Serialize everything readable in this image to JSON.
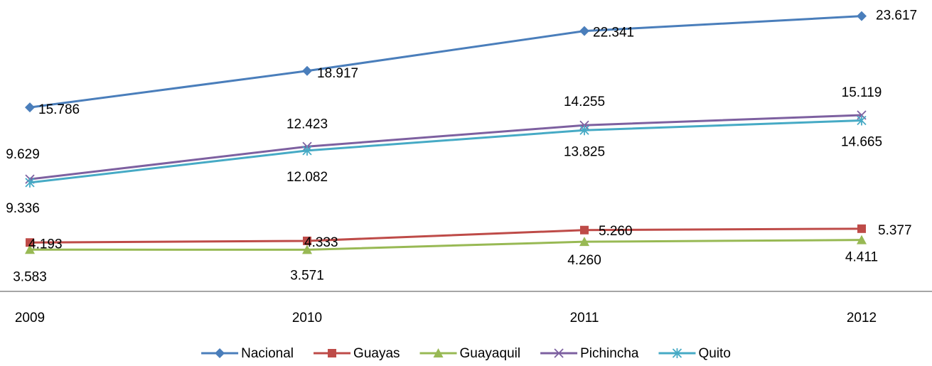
{
  "chart_data": {
    "type": "line",
    "categories": [
      "2009",
      "2010",
      "2011",
      "2012"
    ],
    "ylim": [
      0,
      25000
    ],
    "legend": "bottom",
    "series": [
      {
        "name": "Nacional",
        "color": "#4a7ebb",
        "marker": "diamond",
        "values": [
          15786,
          18917,
          22341,
          23617
        ],
        "value_labels": [
          "15.786",
          "18.917",
          "22.341",
          "23.617"
        ]
      },
      {
        "name": "Guayas",
        "color": "#be4b48",
        "marker": "square",
        "values": [
          4193,
          4333,
          5260,
          5377
        ],
        "value_labels": [
          "4.193",
          "4.333",
          "5.260",
          "5.377"
        ]
      },
      {
        "name": "Guayaquil",
        "color": "#98b954",
        "marker": "triangle",
        "values": [
          3583,
          3571,
          4260,
          4411
        ],
        "value_labels": [
          "3.583",
          "3.571",
          "4.260",
          "4.411"
        ]
      },
      {
        "name": "Pichincha",
        "color": "#7d60a0",
        "marker": "x",
        "values": [
          9629,
          12423,
          14255,
          15119
        ],
        "value_labels": [
          "9.629",
          "12.423",
          "14.255",
          "15.119"
        ]
      },
      {
        "name": "Quito",
        "color": "#46aac5",
        "marker": "star",
        "values": [
          9336,
          12082,
          13825,
          14665
        ],
        "value_labels": [
          "9.336",
          "12.082",
          "13.825",
          "14.665"
        ]
      }
    ]
  }
}
